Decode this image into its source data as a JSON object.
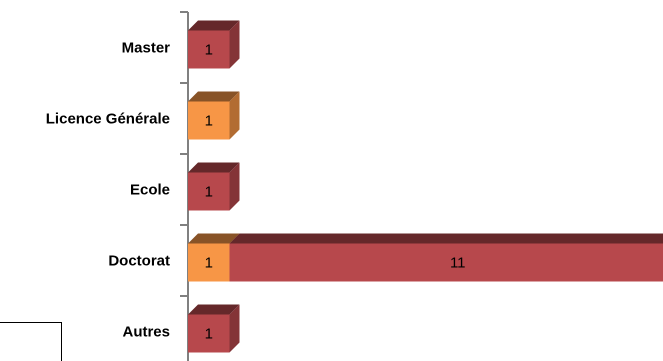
{
  "chart_data": {
    "type": "bar",
    "orientation": "horizontal",
    "stacked": true,
    "style": "3d",
    "categories": [
      "Master",
      "Licence Générale",
      "Ecole",
      "Doctorat",
      "Autres"
    ],
    "series": [
      {
        "color": "#F79646",
        "values": [
          0,
          1,
          0,
          1,
          0
        ]
      },
      {
        "color": "#B7484C",
        "values": [
          1,
          0,
          1,
          11,
          1
        ]
      }
    ],
    "xlim": [
      0,
      12.5
    ],
    "title": "",
    "xlabel": "",
    "ylabel": "",
    "grid": false,
    "legend": "bottom-left (partially visible box)"
  }
}
